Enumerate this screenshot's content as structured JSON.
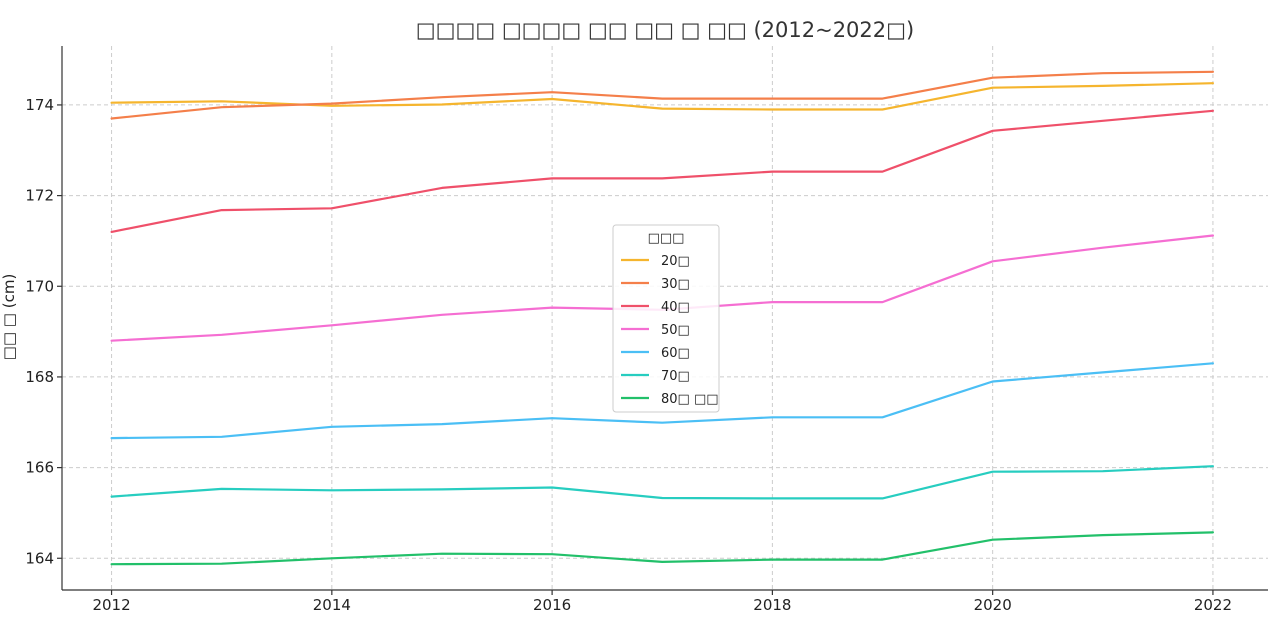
{
  "chart_data": {
    "type": "line",
    "title": "□□□□ □□□□ □□ □□ □ □□ (2012~2022□)",
    "xlabel": "",
    "ylabel": "□□ □ (cm)",
    "xlim": [
      2011.55,
      2022.5
    ],
    "ylim": [
      163.3,
      175.3
    ],
    "xticks": [
      2012,
      2014,
      2016,
      2018,
      2020,
      2022
    ],
    "yticks": [
      164,
      166,
      168,
      170,
      172,
      174
    ],
    "grid": true,
    "legend": {
      "title": "□□□",
      "position": "center"
    },
    "x": [
      2012,
      2013,
      2014,
      2015,
      2016,
      2017,
      2018,
      2019,
      2020,
      2021,
      2022
    ],
    "series": [
      {
        "name": "20□",
        "color": "#f5b52e",
        "values": [
          174.05,
          174.08,
          173.98,
          174.01,
          174.13,
          173.92,
          173.9,
          173.9,
          174.38,
          174.42,
          174.48
        ]
      },
      {
        "name": "30□",
        "color": "#f47f4a",
        "values": [
          173.7,
          173.95,
          174.03,
          174.17,
          174.28,
          174.14,
          174.14,
          174.14,
          174.6,
          174.7,
          174.73
        ]
      },
      {
        "name": "40□",
        "color": "#ef506a",
        "values": [
          171.2,
          171.68,
          171.72,
          172.17,
          172.38,
          172.38,
          172.53,
          172.53,
          173.43,
          173.65,
          173.87
        ]
      },
      {
        "name": "50□",
        "color": "#f56ed2",
        "values": [
          168.8,
          168.93,
          169.14,
          169.37,
          169.53,
          169.48,
          169.65,
          169.65,
          170.55,
          170.85,
          171.12
        ]
      },
      {
        "name": "60□",
        "color": "#4bbff5",
        "values": [
          166.65,
          166.68,
          166.9,
          166.96,
          167.09,
          166.99,
          167.11,
          167.11,
          167.9,
          168.1,
          168.3
        ]
      },
      {
        "name": "70□",
        "color": "#27cdc0",
        "values": [
          165.36,
          165.53,
          165.5,
          165.52,
          165.56,
          165.33,
          165.32,
          165.32,
          165.91,
          165.92,
          166.03
        ]
      },
      {
        "name": "80□ □□",
        "color": "#22c06a",
        "values": [
          163.87,
          163.88,
          164.0,
          164.1,
          164.09,
          163.92,
          163.97,
          163.97,
          164.41,
          164.51,
          164.57
        ]
      }
    ]
  }
}
